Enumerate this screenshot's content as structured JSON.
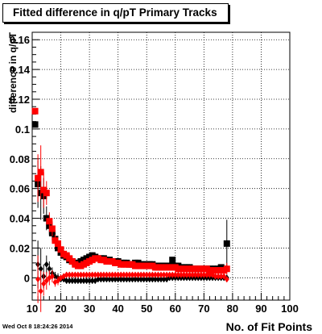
{
  "title": "Fitted difference in q/pT Primary Tracks",
  "footer": "Wed Oct  8 18:24:26 2014",
  "chart_data": {
    "type": "scatter",
    "title": "Fitted difference in q/pT Primary Tracks",
    "xlabel": "No. of Fit Points",
    "ylabel": "difference in q/pT",
    "xlim": [
      10,
      100
    ],
    "ylim": [
      -0.015,
      0.165
    ],
    "xticks": [
      "10",
      "20",
      "30",
      "40",
      "50",
      "60",
      "70",
      "80",
      "90",
      "100"
    ],
    "yticks": [
      "0",
      "0.02",
      "0.04",
      "0.06",
      "0.08",
      "0.1",
      "0.12",
      "0.14",
      "0.16"
    ],
    "grid": true,
    "series": [
      {
        "marker": "square",
        "color": "#000000",
        "x": [
          11,
          12,
          13,
          14,
          15,
          16,
          17,
          18,
          19,
          20,
          21,
          22,
          23,
          24,
          25,
          26,
          27,
          28,
          29,
          30,
          31,
          32,
          33,
          34,
          35,
          36,
          37,
          38,
          39,
          40,
          41,
          42,
          43,
          44,
          45,
          46,
          47,
          48,
          49,
          50,
          51,
          52,
          53,
          54,
          55,
          56,
          57,
          58,
          59,
          60,
          61,
          62,
          63,
          64,
          65,
          66,
          67,
          68,
          69,
          70,
          71,
          72,
          73,
          74,
          75,
          76,
          77,
          78
        ],
        "y": [
          0.103,
          0.063,
          0.057,
          0.055,
          0.04,
          0.035,
          0.03,
          0.026,
          0.02,
          0.017,
          0.015,
          0.014,
          0.012,
          0.011,
          0.01,
          0.01,
          0.011,
          0.012,
          0.013,
          0.014,
          0.015,
          0.014,
          0.013,
          0.013,
          0.013,
          0.012,
          0.012,
          0.011,
          0.011,
          0.011,
          0.01,
          0.01,
          0.01,
          0.009,
          0.009,
          0.01,
          0.01,
          0.009,
          0.009,
          0.009,
          0.009,
          0.009,
          0.008,
          0.008,
          0.008,
          0.008,
          0.008,
          0.008,
          0.012,
          0.008,
          0.008,
          0.007,
          0.007,
          0.007,
          0.007,
          0.006,
          0.006,
          0.006,
          0.006,
          0.006,
          0.006,
          0.006,
          0.006,
          0.006,
          0.006,
          0.007,
          0.006,
          0.023
        ],
        "err": [
          0,
          0.016,
          0.018,
          0.012,
          0.008,
          0.006,
          0.005,
          0.004,
          0.003,
          0.003,
          0.002,
          0.002,
          0.002,
          0.002,
          0.002,
          0.002,
          0.002,
          0.002,
          0.002,
          0.002,
          0.002,
          0.002,
          0.002,
          0.002,
          0.002,
          0.002,
          0.002,
          0.002,
          0.002,
          0.002,
          0.002,
          0.002,
          0.002,
          0.002,
          0.002,
          0.002,
          0.002,
          0.002,
          0.002,
          0.002,
          0.002,
          0.002,
          0.002,
          0.002,
          0.002,
          0.002,
          0.002,
          0.002,
          0.002,
          0.002,
          0.002,
          0.002,
          0.002,
          0.002,
          0.002,
          0.002,
          0.002,
          0.002,
          0.002,
          0.002,
          0.002,
          0.002,
          0.002,
          0.002,
          0.002,
          0.002,
          0.002,
          0.016
        ]
      },
      {
        "marker": "square",
        "color": "#ff0000",
        "x": [
          11,
          12,
          13,
          14,
          15,
          16,
          17,
          18,
          19,
          20,
          21,
          22,
          23,
          24,
          25,
          26,
          27,
          28,
          29,
          30,
          31,
          32,
          33,
          34,
          35,
          36,
          37,
          38,
          39,
          40,
          41,
          42,
          43,
          44,
          45,
          46,
          47,
          48,
          49,
          50,
          51,
          52,
          53,
          54,
          55,
          56,
          57,
          58,
          59,
          60,
          61,
          62,
          63,
          64,
          65,
          66,
          67,
          68,
          69,
          70,
          71,
          72,
          73,
          74,
          75,
          76,
          77,
          78
        ],
        "y": [
          0.112,
          0.067,
          0.071,
          0.059,
          0.057,
          0.038,
          0.033,
          0.025,
          0.023,
          0.019,
          0.016,
          0.015,
          0.013,
          0.011,
          0.009,
          0.008,
          0.008,
          0.009,
          0.01,
          0.011,
          0.012,
          0.013,
          0.013,
          0.012,
          0.012,
          0.011,
          0.011,
          0.011,
          0.01,
          0.01,
          0.009,
          0.009,
          0.009,
          0.009,
          0.009,
          0.008,
          0.008,
          0.008,
          0.008,
          0.008,
          0.008,
          0.008,
          0.007,
          0.007,
          0.007,
          0.007,
          0.007,
          0.007,
          0.007,
          0.007,
          0.006,
          0.006,
          0.006,
          0.006,
          0.006,
          0.006,
          0.006,
          0.006,
          0.006,
          0.006,
          0.006,
          0.005,
          0.005,
          0.005,
          0.005,
          0.005,
          0.005,
          0.006
        ],
        "err": [
          0,
          0.016,
          0.018,
          0.012,
          0.008,
          0.006,
          0.005,
          0.004,
          0.003,
          0.003,
          0.002,
          0.002,
          0.002,
          0.002,
          0.002,
          0.002,
          0.002,
          0.002,
          0.002,
          0.002,
          0.002,
          0.002,
          0.002,
          0.002,
          0.002,
          0.002,
          0.002,
          0.002,
          0.002,
          0.002,
          0.002,
          0.002,
          0.002,
          0.002,
          0.002,
          0.002,
          0.002,
          0.002,
          0.002,
          0.002,
          0.002,
          0.002,
          0.002,
          0.002,
          0.002,
          0.002,
          0.002,
          0.002,
          0.002,
          0.002,
          0.002,
          0.002,
          0.002,
          0.002,
          0.002,
          0.002,
          0.002,
          0.002,
          0.002,
          0.002,
          0.002,
          0.002,
          0.002,
          0.002,
          0.002,
          0.002,
          0.002,
          0.004
        ]
      },
      {
        "marker": "diamond",
        "color": "#000000",
        "x": [
          12,
          13,
          14,
          15,
          16,
          17,
          18,
          19,
          20,
          21,
          22,
          23,
          24,
          25,
          26,
          27,
          28,
          29,
          30,
          31,
          32,
          33,
          34,
          35,
          36,
          37,
          38,
          39,
          40,
          41,
          42,
          43,
          44,
          45,
          46,
          47,
          48,
          49,
          50,
          51,
          52,
          53,
          54,
          55,
          56,
          57,
          58,
          59,
          60,
          61,
          62,
          63,
          64,
          65,
          66,
          67,
          68,
          69,
          70,
          71,
          72,
          73,
          74,
          75,
          76,
          77,
          78
        ],
        "y": [
          0.009,
          0.006,
          0.001,
          0.009,
          0.006,
          0.003,
          0.001,
          0.0,
          -0.001,
          -0.001,
          -0.002,
          -0.002,
          -0.002,
          -0.002,
          -0.002,
          -0.002,
          -0.002,
          -0.002,
          -0.002,
          -0.002,
          -0.002,
          -0.001,
          -0.001,
          -0.001,
          -0.001,
          -0.001,
          -0.001,
          -0.001,
          -0.001,
          -0.001,
          -0.001,
          -0.001,
          -0.001,
          -0.001,
          -0.001,
          -0.001,
          -0.001,
          -0.001,
          -0.001,
          -0.001,
          -0.001,
          -0.001,
          -0.001,
          -0.001,
          -0.001,
          -0.001,
          0.0,
          0.0,
          0.0,
          0.0,
          0.0,
          0.0,
          0.0,
          0.0,
          0.0,
          0.0,
          0.0,
          0.0,
          0.0,
          0.0,
          0.0,
          0.0,
          0.0,
          0.0,
          0.0,
          0.0,
          0.0
        ],
        "err": [
          0.016,
          0.014,
          0.008,
          0.006,
          0.005,
          0.004,
          0.003,
          0.003,
          0.002,
          0.002,
          0.002,
          0.002,
          0.002,
          0.002,
          0.002,
          0.002,
          0.002,
          0.002,
          0.002,
          0.002,
          0.002,
          0.002,
          0.002,
          0.002,
          0.002,
          0.002,
          0.002,
          0.002,
          0.002,
          0.002,
          0.002,
          0.002,
          0.002,
          0.002,
          0.002,
          0.002,
          0.002,
          0.002,
          0.002,
          0.002,
          0.002,
          0.002,
          0.002,
          0.002,
          0.002,
          0.002,
          0.002,
          0.002,
          0.002,
          0.002,
          0.002,
          0.002,
          0.002,
          0.002,
          0.002,
          0.002,
          0.002,
          0.002,
          0.002,
          0.002,
          0.002,
          0.002,
          0.002,
          0.002,
          0.002,
          0.002,
          0.002
        ]
      },
      {
        "marker": "diamond",
        "color": "#ff0000",
        "x": [
          12,
          13,
          14,
          15,
          16,
          17,
          18,
          19,
          20,
          21,
          22,
          23,
          24,
          25,
          26,
          27,
          28,
          29,
          30,
          31,
          32,
          33,
          34,
          35,
          36,
          37,
          38,
          39,
          40,
          41,
          42,
          43,
          44,
          45,
          46,
          47,
          48,
          49,
          50,
          51,
          52,
          53,
          54,
          55,
          56,
          57,
          58,
          59,
          60,
          61,
          62,
          63,
          64,
          65,
          66,
          67,
          68,
          69,
          70,
          71,
          72,
          73,
          74,
          75,
          76,
          77,
          78
        ],
        "y": [
          -0.001,
          -0.009,
          -0.004,
          -0.002,
          0.0,
          0.001,
          -0.003,
          -0.002,
          0.0,
          0.001,
          0.002,
          0.002,
          0.002,
          0.002,
          0.002,
          0.002,
          0.002,
          0.002,
          0.002,
          0.002,
          0.002,
          0.002,
          0.002,
          0.002,
          0.002,
          0.002,
          0.002,
          0.002,
          0.002,
          0.002,
          0.002,
          0.002,
          0.002,
          0.002,
          0.002,
          0.002,
          0.002,
          0.002,
          0.002,
          0.002,
          0.002,
          0.002,
          0.002,
          0.002,
          0.002,
          0.002,
          0.002,
          0.002,
          0.002,
          0.002,
          0.002,
          0.002,
          0.002,
          0.002,
          0.002,
          0.002,
          0.002,
          0.002,
          0.002,
          0.002,
          0.002,
          0.002,
          0.001,
          0.001,
          0.001,
          0.001,
          -0.001
        ],
        "err": [
          0.016,
          0.014,
          0.008,
          0.006,
          0.005,
          0.004,
          0.003,
          0.003,
          0.002,
          0.002,
          0.002,
          0.002,
          0.002,
          0.002,
          0.002,
          0.002,
          0.002,
          0.002,
          0.002,
          0.002,
          0.002,
          0.002,
          0.002,
          0.002,
          0.002,
          0.002,
          0.002,
          0.002,
          0.002,
          0.002,
          0.002,
          0.002,
          0.002,
          0.002,
          0.002,
          0.002,
          0.002,
          0.002,
          0.002,
          0.002,
          0.002,
          0.002,
          0.002,
          0.002,
          0.002,
          0.002,
          0.002,
          0.002,
          0.002,
          0.002,
          0.002,
          0.002,
          0.002,
          0.002,
          0.002,
          0.002,
          0.002,
          0.002,
          0.002,
          0.002,
          0.002,
          0.002,
          0.002,
          0.002,
          0.002,
          0.002,
          0.002
        ]
      }
    ]
  }
}
